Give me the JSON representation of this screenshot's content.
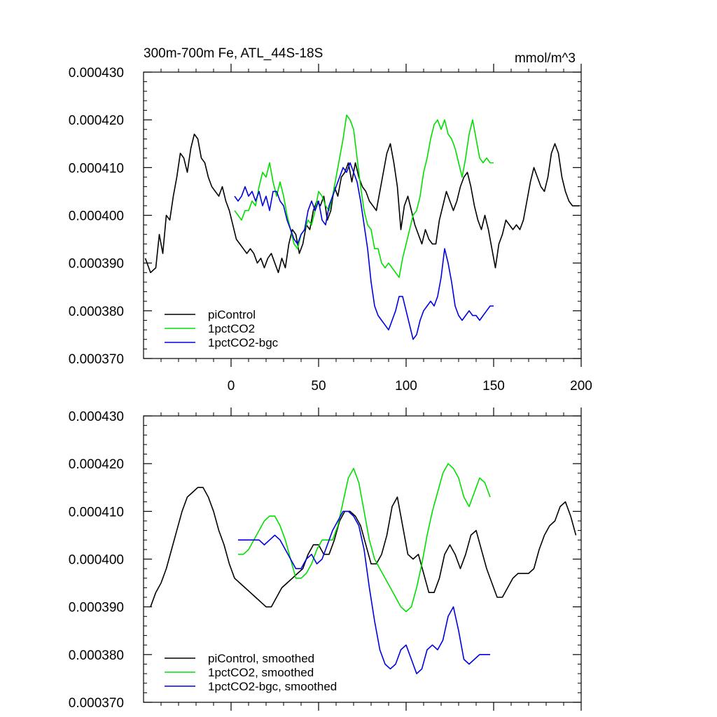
{
  "chart_data": [
    {
      "type": "line",
      "title": "300m-700m Fe, ATL_44S-18S",
      "units": "mmol/m^3",
      "xlim": [
        -50,
        200
      ],
      "ylim": [
        0.00037,
        0.00043
      ],
      "x_ticks": [
        0,
        50,
        100,
        150,
        200
      ],
      "x_tick_labels": [
        "0",
        "50",
        "100",
        "150",
        "200"
      ],
      "y_ticks": [
        0.00037,
        0.00038,
        0.00039,
        0.0004,
        0.00041,
        0.00042,
        0.00043
      ],
      "y_tick_labels": [
        "0.000370",
        "0.000380",
        "0.000390",
        "0.000400",
        "0.000410",
        "0.000420",
        "0.000430"
      ],
      "legend_position": "bottom-left",
      "series": [
        {
          "name": "piControl",
          "color": "#000000",
          "x": [
            -49,
            -46,
            -43,
            -41,
            -39,
            -37,
            -35,
            -33,
            -31,
            -29,
            -27,
            -25,
            -23,
            -21,
            -19,
            -17,
            -15,
            -13,
            -11,
            -9,
            -7,
            -5,
            -3,
            -1,
            1,
            3,
            5,
            7,
            9,
            11,
            13,
            15,
            17,
            19,
            21,
            23,
            25,
            27,
            29,
            31,
            33,
            35,
            37,
            39,
            41,
            43,
            45,
            47,
            49,
            51,
            53,
            55,
            57,
            59,
            61,
            63,
            65,
            67,
            69,
            71,
            73,
            75,
            77,
            79,
            81,
            83,
            85,
            87,
            89,
            91,
            93,
            95,
            97,
            99,
            101,
            103,
            105,
            107,
            109,
            111,
            113,
            115,
            117,
            119,
            121,
            123,
            125,
            127,
            129,
            131,
            133,
            135,
            137,
            139,
            141,
            143,
            145,
            147,
            149,
            151,
            153,
            155,
            157,
            159,
            161,
            163,
            165,
            167,
            169,
            171,
            173,
            175,
            177,
            179,
            181,
            183,
            185,
            187,
            189,
            191,
            193,
            195,
            197,
            199
          ],
          "y": [
            0.000391,
            0.000388,
            0.000389,
            0.000396,
            0.000392,
            0.0004,
            0.000399,
            0.000404,
            0.000408,
            0.000413,
            0.000412,
            0.000409,
            0.000414,
            0.000417,
            0.000416,
            0.000412,
            0.000411,
            0.000408,
            0.000406,
            0.000405,
            0.000404,
            0.000406,
            0.000403,
            0.000401,
            0.000398,
            0.000395,
            0.000394,
            0.000393,
            0.000392,
            0.000393,
            0.000392,
            0.00039,
            0.000391,
            0.000389,
            0.000391,
            0.000392,
            0.00039,
            0.000388,
            0.000391,
            0.000389,
            0.000394,
            0.000397,
            0.000396,
            0.000392,
            0.000394,
            0.000398,
            0.000397,
            0.000401,
            0.000403,
            0.000402,
            0.000404,
            0.000399,
            0.000401,
            0.000406,
            0.000404,
            0.000408,
            0.000409,
            0.000411,
            0.000407,
            0.000411,
            0.000408,
            0.000406,
            0.000405,
            0.000403,
            0.000402,
            0.000401,
            0.000405,
            0.000409,
            0.000413,
            0.000415,
            0.000411,
            0.000406,
            0.000397,
            0.000402,
            0.000404,
            0.000401,
            0.000398,
            0.000396,
            0.000394,
            0.000397,
            0.000395,
            0.000394,
            0.000394,
            0.000399,
            0.000402,
            0.000405,
            0.000403,
            0.000401,
            0.000403,
            0.000406,
            0.000408,
            0.000409,
            0.000406,
            0.000402,
            0.000399,
            0.000397,
            0.0004,
            0.000397,
            0.000393,
            0.000389,
            0.000394,
            0.000396,
            0.000399,
            0.000398,
            0.000397,
            0.000398,
            0.000397,
            0.000399,
            0.000403,
            0.000407,
            0.00041,
            0.000408,
            0.000406,
            0.000405,
            0.000408,
            0.000413,
            0.000415,
            0.000413,
            0.000408,
            0.000405,
            0.000403,
            0.000402,
            0.000402,
            0.000402
          ]
        },
        {
          "name": "1pctCO2",
          "color": "#00e000",
          "x": [
            2,
            4,
            6,
            8,
            10,
            12,
            14,
            16,
            18,
            20,
            22,
            24,
            26,
            28,
            30,
            32,
            34,
            36,
            38,
            40,
            42,
            44,
            46,
            48,
            50,
            52,
            54,
            56,
            58,
            60,
            62,
            64,
            66,
            68,
            70,
            72,
            74,
            76,
            78,
            80,
            82,
            84,
            86,
            88,
            90,
            92,
            94,
            96,
            98,
            100,
            102,
            104,
            106,
            108,
            110,
            112,
            114,
            116,
            118,
            120,
            122,
            124,
            126,
            128,
            130,
            132,
            134,
            136,
            138,
            140,
            142,
            144,
            146,
            148,
            150
          ],
          "y": [
            0.000401,
            0.0004,
            0.000399,
            0.000401,
            0.000401,
            0.000403,
            0.000402,
            0.000406,
            0.000409,
            0.000408,
            0.000411,
            0.000407,
            0.000404,
            0.000407,
            0.000404,
            0.0004,
            0.000397,
            0.000394,
            0.000393,
            0.000396,
            0.000397,
            0.000399,
            0.000398,
            0.000401,
            0.000405,
            0.000404,
            0.000402,
            0.000401,
            0.000404,
            0.000408,
            0.000412,
            0.000416,
            0.000421,
            0.00042,
            0.000418,
            0.000412,
            0.000406,
            0.000401,
            0.000398,
            0.000397,
            0.000393,
            0.000393,
            0.00039,
            0.000389,
            0.00039,
            0.000389,
            0.000388,
            0.000387,
            0.000391,
            0.000394,
            0.000397,
            0.0004,
            0.000401,
            0.000404,
            0.000409,
            0.000412,
            0.000416,
            0.000419,
            0.00042,
            0.000418,
            0.00042,
            0.000417,
            0.000416,
            0.000414,
            0.000411,
            0.000408,
            0.000412,
            0.000417,
            0.00042,
            0.000416,
            0.000412,
            0.000411,
            0.000412,
            0.000411,
            0.000411
          ]
        },
        {
          "name": "1pctCO2-bgc",
          "color": "#0000e0",
          "x": [
            2,
            4,
            6,
            8,
            10,
            12,
            14,
            16,
            18,
            20,
            22,
            24,
            26,
            28,
            30,
            32,
            34,
            36,
            38,
            40,
            42,
            44,
            46,
            48,
            50,
            52,
            54,
            56,
            58,
            60,
            62,
            64,
            66,
            68,
            70,
            72,
            74,
            76,
            78,
            80,
            82,
            84,
            86,
            88,
            90,
            92,
            94,
            96,
            98,
            100,
            102,
            104,
            106,
            108,
            110,
            112,
            114,
            116,
            118,
            120,
            122,
            124,
            126,
            128,
            130,
            132,
            134,
            136,
            138,
            140,
            142,
            144,
            146,
            148,
            150
          ],
          "y": [
            0.000404,
            0.000403,
            0.000404,
            0.000406,
            0.000404,
            0.000405,
            0.000403,
            0.000405,
            0.000402,
            0.000404,
            0.000401,
            0.000405,
            0.000405,
            0.000403,
            0.000402,
            0.000399,
            0.000397,
            0.000395,
            0.000394,
            0.000396,
            0.000397,
            0.000401,
            0.000403,
            0.000401,
            0.000403,
            0.000399,
            0.000398,
            0.000402,
            0.000404,
            0.000406,
            0.000408,
            0.00041,
            0.000409,
            0.000411,
            0.000409,
            0.000407,
            0.000403,
            0.000398,
            0.000393,
            0.000386,
            0.000381,
            0.000379,
            0.000378,
            0.000377,
            0.000376,
            0.000378,
            0.00038,
            0.000383,
            0.000383,
            0.00038,
            0.000377,
            0.000374,
            0.000375,
            0.000378,
            0.00038,
            0.000381,
            0.000382,
            0.000381,
            0.000383,
            0.000387,
            0.000393,
            0.00039,
            0.000386,
            0.000381,
            0.000379,
            0.000378,
            0.000379,
            0.00038,
            0.000379,
            0.000379,
            0.000378,
            0.000379,
            0.00038,
            0.000381,
            0.000381
          ]
        }
      ]
    },
    {
      "type": "line",
      "xlim": [
        -50,
        200
      ],
      "ylim": [
        0.00037,
        0.00043
      ],
      "x_ticks": [
        0,
        50,
        100,
        150,
        200
      ],
      "y_ticks": [
        0.00037,
        0.00038,
        0.00039,
        0.0004,
        0.00041,
        0.00042,
        0.00043
      ],
      "y_tick_labels": [
        "0.000370",
        "0.000380",
        "0.000390",
        "0.000400",
        "0.000410",
        "0.000420",
        "0.000430"
      ],
      "legend_position": "bottom-left",
      "series": [
        {
          "name": "piControl, smoothed",
          "color": "#000000",
          "x": [
            -46,
            -43,
            -40,
            -37,
            -34,
            -31,
            -28,
            -25,
            -22,
            -19,
            -16,
            -13,
            -10,
            -7,
            -4,
            -1,
            2,
            5,
            8,
            11,
            14,
            17,
            20,
            23,
            26,
            29,
            32,
            35,
            38,
            41,
            44,
            47,
            50,
            53,
            56,
            59,
            62,
            65,
            68,
            71,
            74,
            77,
            80,
            83,
            86,
            89,
            92,
            95,
            98,
            101,
            104,
            107,
            110,
            113,
            116,
            119,
            122,
            125,
            128,
            131,
            134,
            137,
            140,
            143,
            146,
            149,
            152,
            155,
            158,
            161,
            164,
            167,
            170,
            173,
            176,
            179,
            182,
            185,
            188,
            191,
            194,
            197
          ],
          "y": [
            0.00039,
            0.000393,
            0.000395,
            0.000398,
            0.000402,
            0.000406,
            0.00041,
            0.000413,
            0.000414,
            0.000415,
            0.000415,
            0.000413,
            0.00041,
            0.000406,
            0.000403,
            0.000399,
            0.000396,
            0.000395,
            0.000394,
            0.000393,
            0.000392,
            0.000391,
            0.00039,
            0.00039,
            0.000392,
            0.000394,
            0.000395,
            0.000396,
            0.000397,
            0.000398,
            0.000401,
            0.000403,
            0.000403,
            0.000401,
            0.000401,
            0.000404,
            0.000408,
            0.00041,
            0.00041,
            0.000409,
            0.000407,
            0.000403,
            0.000399,
            0.000399,
            0.000401,
            0.000405,
            0.000411,
            0.000413,
            0.000407,
            0.000401,
            0.0004,
            0.000401,
            0.000397,
            0.000393,
            0.000393,
            0.000396,
            0.000401,
            0.000403,
            0.000401,
            0.000398,
            0.000401,
            0.000405,
            0.000406,
            0.000402,
            0.000398,
            0.000395,
            0.000392,
            0.000392,
            0.000394,
            0.000396,
            0.000397,
            0.000397,
            0.000397,
            0.000398,
            0.000402,
            0.000405,
            0.000407,
            0.000408,
            0.000411,
            0.000412,
            0.000409,
            0.000405
          ]
        },
        {
          "name": "1pctCO2, smoothed",
          "color": "#00e000",
          "x": [
            4,
            7,
            10,
            13,
            16,
            19,
            22,
            25,
            28,
            31,
            34,
            37,
            40,
            43,
            46,
            49,
            52,
            55,
            58,
            61,
            64,
            67,
            70,
            73,
            76,
            79,
            82,
            85,
            88,
            91,
            94,
            97,
            100,
            103,
            106,
            109,
            112,
            115,
            118,
            121,
            124,
            127,
            130,
            133,
            136,
            139,
            142,
            145,
            148
          ],
          "y": [
            0.000401,
            0.000401,
            0.000402,
            0.000404,
            0.000406,
            0.000408,
            0.000409,
            0.000409,
            0.000407,
            0.000404,
            0.0004,
            0.000396,
            0.000396,
            0.000397,
            0.000399,
            0.000402,
            0.000404,
            0.000404,
            0.000404,
            0.000407,
            0.000412,
            0.000417,
            0.000419,
            0.000416,
            0.00041,
            0.000404,
            0.0004,
            0.000398,
            0.000396,
            0.000394,
            0.000392,
            0.00039,
            0.000389,
            0.00039,
            0.000394,
            0.000399,
            0.000405,
            0.00041,
            0.000414,
            0.000418,
            0.00042,
            0.000419,
            0.000417,
            0.000413,
            0.000411,
            0.000414,
            0.000417,
            0.000416,
            0.000413
          ]
        },
        {
          "name": "1pctCO2-bgc, smoothed",
          "color": "#0000e0",
          "x": [
            4,
            7,
            10,
            13,
            16,
            19,
            22,
            25,
            28,
            31,
            34,
            37,
            40,
            43,
            46,
            49,
            52,
            55,
            58,
            61,
            64,
            67,
            70,
            73,
            76,
            79,
            82,
            85,
            88,
            91,
            94,
            97,
            100,
            103,
            106,
            109,
            112,
            115,
            118,
            121,
            124,
            127,
            130,
            133,
            136,
            139,
            142,
            145,
            148
          ],
          "y": [
            0.000404,
            0.000404,
            0.000404,
            0.000404,
            0.000404,
            0.000403,
            0.000404,
            0.000405,
            0.000404,
            0.000402,
            0.0004,
            0.000398,
            0.000398,
            0.0004,
            0.000401,
            0.000399,
            0.0004,
            0.000403,
            0.000406,
            0.000408,
            0.00041,
            0.00041,
            0.000409,
            0.000407,
            0.000402,
            0.000394,
            0.000387,
            0.000381,
            0.000378,
            0.000377,
            0.000378,
            0.000381,
            0.000382,
            0.000379,
            0.000376,
            0.000377,
            0.000381,
            0.000382,
            0.000381,
            0.000383,
            0.000388,
            0.00039,
            0.000385,
            0.000379,
            0.000378,
            0.000379,
            0.00038,
            0.00038,
            0.00038
          ]
        }
      ]
    }
  ]
}
